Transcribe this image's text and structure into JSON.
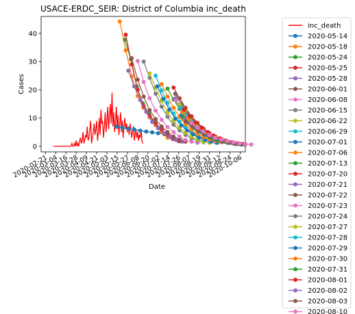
{
  "chart_data": {
    "type": "line",
    "title": "USACE-ERDC_SEIR: District of Columbia inc_death",
    "xlabel": "Date",
    "ylabel": "Cases",
    "x_ticks": [
      "2020-02-21",
      "2020-03-04",
      "2020-03-16",
      "2020-03-28",
      "2020-04-09",
      "2020-04-21",
      "2020-05-03",
      "2020-05-15",
      "2020-05-27",
      "2020-06-08",
      "2020-06-20",
      "2020-07-02",
      "2020-07-14",
      "2020-07-26",
      "2020-08-07",
      "2020-08-19",
      "2020-08-31",
      "2020-09-12",
      "2020-09-24",
      "2020-10-06"
    ],
    "xlim": [
      "2020-02-16",
      "2020-10-12"
    ],
    "ylim": [
      -2,
      46
    ],
    "y_ticks": [
      0,
      10,
      20,
      30,
      40
    ],
    "legend_position": "outside-right",
    "observed": {
      "name": "inc_death",
      "color": "#ff0000",
      "start": "2020-03-01",
      "values": [
        0,
        0,
        0,
        0,
        0,
        0,
        0,
        0,
        0,
        0,
        0,
        0,
        0,
        0,
        0,
        0,
        0,
        0,
        0,
        0,
        0,
        0,
        1,
        0,
        0,
        1,
        0,
        2,
        0,
        1,
        0,
        2,
        3,
        1,
        2,
        5,
        1,
        2,
        4,
        3,
        7,
        2,
        3,
        6,
        9,
        1,
        3,
        5,
        8,
        4,
        6,
        9,
        2,
        5,
        10,
        4,
        13,
        8,
        9,
        3,
        7,
        12,
        5,
        9,
        14,
        6,
        11,
        15,
        8,
        19,
        7,
        12,
        5,
        9,
        14,
        6,
        11,
        4,
        8,
        12,
        5,
        9,
        3,
        7,
        10,
        6,
        8,
        5,
        7,
        4,
        8,
        6,
        3,
        5,
        7,
        2,
        4,
        6,
        3,
        5,
        2,
        4,
        3,
        6,
        2,
        1
      ]
    },
    "series": [
      {
        "name": "2020-05-14",
        "color": "#1f77b4",
        "start": "2020-05-14",
        "values": [
          7.0,
          6.6,
          6.2,
          5.9,
          5.5,
          5.2,
          4.9,
          4.6,
          4.3
        ]
      },
      {
        "name": "2020-05-18",
        "color": "#ff7f0e",
        "start": "2020-05-18",
        "values": [
          44.2,
          34.0,
          24.8,
          17.8,
          13.6,
          10.2,
          7.4,
          5.0,
          3.0
        ]
      },
      {
        "name": "2020-05-24",
        "color": "#2ca02c",
        "start": "2020-05-24",
        "values": [
          37.8,
          30.8,
          21.2,
          15.2,
          11.6,
          8.6,
          6.2,
          4.2,
          2.6,
          1.8
        ]
      },
      {
        "name": "2020-05-25",
        "color": "#d62728",
        "start": "2020-05-25",
        "values": [
          39.5,
          29.0,
          20.0,
          14.2,
          10.8,
          8.0,
          5.8,
          4.0,
          2.6,
          1.8
        ]
      },
      {
        "name": "2020-05-28",
        "color": "#9467bd",
        "start": "2020-05-28",
        "values": [
          26.8,
          21.2,
          16.4,
          12.2,
          8.6,
          6.4,
          4.6,
          3.2,
          2.2,
          1.6
        ]
      },
      {
        "name": "2020-06-01",
        "color": "#8c564b",
        "start": "2020-06-01",
        "values": [
          31.2,
          23.6,
          17.6,
          12.8,
          9.6,
          7.0,
          5.0,
          3.4,
          2.4,
          1.6
        ]
      },
      {
        "name": "2020-06-08",
        "color": "#e377c2",
        "start": "2020-06-08",
        "values": [
          30.2,
          22.8,
          17.0,
          12.6,
          9.4,
          6.8,
          5.0,
          3.4,
          2.2,
          1.6,
          1.2
        ]
      },
      {
        "name": "2020-06-15",
        "color": "#7f7f7f",
        "start": "2020-06-15",
        "values": [
          30.0,
          24.2,
          18.6,
          14.0,
          10.4,
          7.6,
          5.6,
          4.0,
          2.8,
          2.0,
          1.4
        ]
      },
      {
        "name": "2020-06-22",
        "color": "#bcbd22",
        "start": "2020-06-22",
        "values": [
          25.8,
          20.8,
          16.0,
          12.0,
          9.0,
          6.6,
          4.8,
          3.4,
          2.4,
          1.6,
          1.2
        ]
      },
      {
        "name": "2020-06-29",
        "color": "#17becf",
        "start": "2020-06-29",
        "values": [
          25.0,
          19.8,
          15.4,
          11.6,
          8.8,
          6.6,
          4.8,
          3.6,
          2.6,
          1.8,
          1.4
        ]
      },
      {
        "name": "2020-07-01",
        "color": "#1f77b4",
        "start": "2020-07-01",
        "values": [
          21.2,
          16.8,
          13.0,
          9.8,
          7.4,
          5.6,
          4.2,
          3.0,
          2.2,
          1.6,
          1.2
        ]
      },
      {
        "name": "2020-07-06",
        "color": "#ff7f0e",
        "start": "2020-07-06",
        "values": [
          22.0,
          17.6,
          13.6,
          10.4,
          7.8,
          5.8,
          4.4,
          3.2,
          2.4,
          1.8,
          1.4
        ]
      },
      {
        "name": "2020-07-13",
        "color": "#2ca02c",
        "start": "2020-07-13",
        "values": [
          20.4,
          16.6,
          13.2,
          10.2,
          7.8,
          5.8,
          4.4,
          3.2,
          2.4,
          1.8,
          1.2
        ]
      },
      {
        "name": "2020-07-20",
        "color": "#d62728",
        "start": "2020-07-20",
        "values": [
          20.8,
          17.0,
          13.6,
          10.6,
          8.2,
          6.2,
          4.6,
          3.4,
          2.6,
          1.8,
          1.4
        ]
      },
      {
        "name": "2020-07-21",
        "color": "#9467bd",
        "start": "2020-07-21",
        "values": [
          16.8,
          13.6,
          10.8,
          8.4,
          6.4,
          4.8,
          3.6,
          2.6,
          1.8,
          1.4,
          1.0
        ]
      },
      {
        "name": "2020-07-22",
        "color": "#8c564b",
        "start": "2020-07-22",
        "values": [
          18.6,
          15.0,
          11.8,
          9.2,
          7.0,
          5.2,
          3.8,
          2.8,
          2.0,
          1.4,
          1.0
        ]
      },
      {
        "name": "2020-07-23",
        "color": "#e377c2",
        "start": "2020-07-23",
        "values": [
          16.2,
          13.0,
          10.2,
          7.8,
          6.0,
          4.4,
          3.2,
          2.4,
          1.8,
          1.2,
          1.0
        ]
      },
      {
        "name": "2020-07-24",
        "color": "#7f7f7f",
        "start": "2020-07-24",
        "values": [
          17.4,
          14.0,
          11.0,
          8.4,
          6.4,
          4.8,
          3.6,
          2.6,
          1.8,
          1.4,
          1.0
        ]
      },
      {
        "name": "2020-07-27",
        "color": "#bcbd22",
        "start": "2020-07-27",
        "values": [
          14.8,
          12.0,
          9.4,
          7.2,
          5.4,
          4.0,
          3.0,
          2.2,
          1.6,
          1.2,
          0.8
        ]
      },
      {
        "name": "2020-07-28",
        "color": "#17becf",
        "start": "2020-07-28",
        "values": [
          13.6,
          11.0,
          8.6,
          6.6,
          5.0,
          3.8,
          2.8,
          2.0,
          1.6,
          1.2,
          0.8
        ]
      },
      {
        "name": "2020-07-29",
        "color": "#1f77b4",
        "start": "2020-07-29",
        "values": [
          11.0,
          8.8,
          6.8,
          5.2,
          4.0,
          3.0,
          2.2,
          1.6,
          1.2,
          0.8,
          0.6
        ]
      },
      {
        "name": "2020-07-30",
        "color": "#ff7f0e",
        "start": "2020-07-30",
        "values": [
          12.0,
          9.6,
          7.6,
          5.8,
          4.4,
          3.4,
          2.6,
          1.8,
          1.4,
          1.0,
          0.8
        ]
      },
      {
        "name": "2020-07-31",
        "color": "#2ca02c",
        "start": "2020-07-31",
        "values": [
          10.2,
          8.2,
          6.4,
          5.0,
          3.8,
          2.8,
          2.2,
          1.6,
          1.2,
          0.8,
          0.6
        ]
      },
      {
        "name": "2020-08-01",
        "color": "#d62728",
        "start": "2020-08-01",
        "values": [
          13.0,
          10.6,
          8.4,
          6.6,
          5.0,
          3.8,
          2.8,
          2.0,
          1.4,
          1.0,
          0.8
        ]
      },
      {
        "name": "2020-08-02",
        "color": "#9467bd",
        "start": "2020-08-02",
        "values": [
          9.6,
          7.8,
          6.2,
          4.8,
          3.6,
          2.8,
          2.0,
          1.6,
          1.2,
          0.8,
          0.6
        ]
      },
      {
        "name": "2020-08-03",
        "color": "#8c564b",
        "start": "2020-08-03",
        "values": [
          8.8,
          7.2,
          5.6,
          4.4,
          3.4,
          2.6,
          2.0,
          1.4,
          1.0,
          0.8,
          0.6
        ]
      },
      {
        "name": "2020-08-10",
        "color": "#e377c2",
        "start": "2020-08-10",
        "values": [
          8.2,
          6.6,
          5.2,
          4.0,
          3.0,
          2.4,
          1.8,
          1.4,
          1.0,
          0.8,
          0.6
        ]
      }
    ]
  }
}
